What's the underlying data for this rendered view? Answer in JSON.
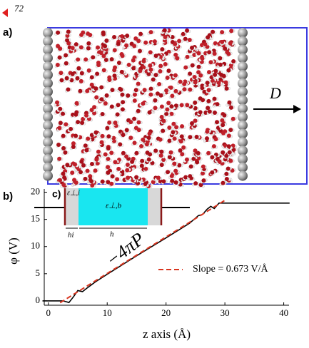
{
  "header": {
    "page_number": "72"
  },
  "panels": {
    "a": "a)",
    "b": "b)",
    "c": "c)"
  },
  "simulation": {
    "arrow_label": "D"
  },
  "inset": {
    "eps_interface": "ε⊥,i",
    "eps_bulk": "ε⊥,b",
    "h_interface": "hi",
    "h_bulk": "h"
  },
  "chart_data": {
    "type": "line",
    "xlabel": "z axis (Å)",
    "ylabel": "φ (V)",
    "annotation": "−4πP",
    "series": [
      {
        "color": "#000000",
        "x": [
          -1,
          2.5,
          3.5,
          4.3,
          5,
          5.8,
          6.5,
          8,
          10,
          15,
          20,
          24,
          25.5,
          26.2,
          27,
          27.6,
          28.2,
          29,
          41
        ],
        "values": [
          0,
          0,
          -0.3,
          0.8,
          1.9,
          1.7,
          2.3,
          3.5,
          4.9,
          8.3,
          11.6,
          14.3,
          15.7,
          15.9,
          16.9,
          17.4,
          17.0,
          18.0,
          18.0
        ]
      },
      {
        "name": "Slope = 0.673 V/Å",
        "color": "#d9351f",
        "dashed": true,
        "x": [
          2,
          30
        ],
        "values": [
          -0.34,
          18.51
        ]
      }
    ],
    "xlim": [
      -0.7,
      40.9
    ],
    "ylim": [
      -0.8,
      20.6
    ],
    "xticks": [
      0,
      10,
      20,
      30,
      40
    ],
    "yticks": [
      0,
      5,
      10,
      15,
      20
    ]
  }
}
